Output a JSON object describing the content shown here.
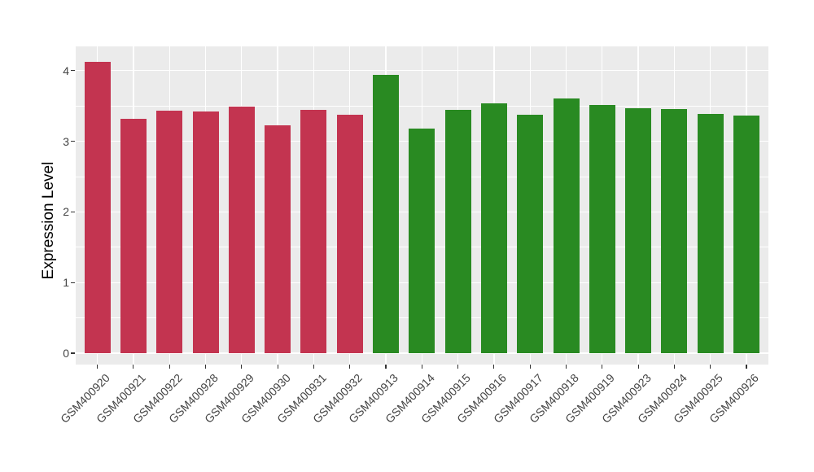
{
  "style": {
    "background": "#FFFFFF",
    "panel_background": "#EBEBEB",
    "grid_color": "#FFFFFF",
    "tick_mark_color": "#333333",
    "tick_label_color": "#444444",
    "axis_title_color": "#000000",
    "group_color_left": "#C33450",
    "group_color_right": "#298A22"
  },
  "chart_data": {
    "type": "bar",
    "title": "",
    "xlabel": "",
    "ylabel": "Expression Level",
    "ylim": [
      0,
      4.34
    ],
    "yticks": [
      0,
      1,
      2,
      3,
      4
    ],
    "yticks_minor": [
      0.5,
      1.5,
      2.5,
      3.5
    ],
    "grid": "white major and minor horizontal lines plus major vertical lines on grey panel",
    "legend": "none",
    "categories": [
      "GSM400920",
      "GSM400921",
      "GSM400922",
      "GSM400928",
      "GSM400929",
      "GSM400930",
      "GSM400931",
      "GSM400932",
      "GSM400913",
      "GSM400914",
      "GSM400915",
      "GSM400916",
      "GSM400917",
      "GSM400918",
      "GSM400919",
      "GSM400923",
      "GSM400924",
      "GSM400925",
      "GSM400926"
    ],
    "values": [
      4.13,
      3.32,
      3.43,
      3.42,
      3.49,
      3.23,
      3.44,
      3.38,
      3.94,
      3.18,
      3.45,
      3.54,
      3.38,
      3.61,
      3.52,
      3.47,
      3.46,
      3.39,
      3.37
    ],
    "bar_colors": [
      "#C33450",
      "#C33450",
      "#C33450",
      "#C33450",
      "#C33450",
      "#C33450",
      "#C33450",
      "#C33450",
      "#298A22",
      "#298A22",
      "#298A22",
      "#298A22",
      "#298A22",
      "#298A22",
      "#298A22",
      "#298A22",
      "#298A22",
      "#298A22",
      "#298A22"
    ]
  }
}
